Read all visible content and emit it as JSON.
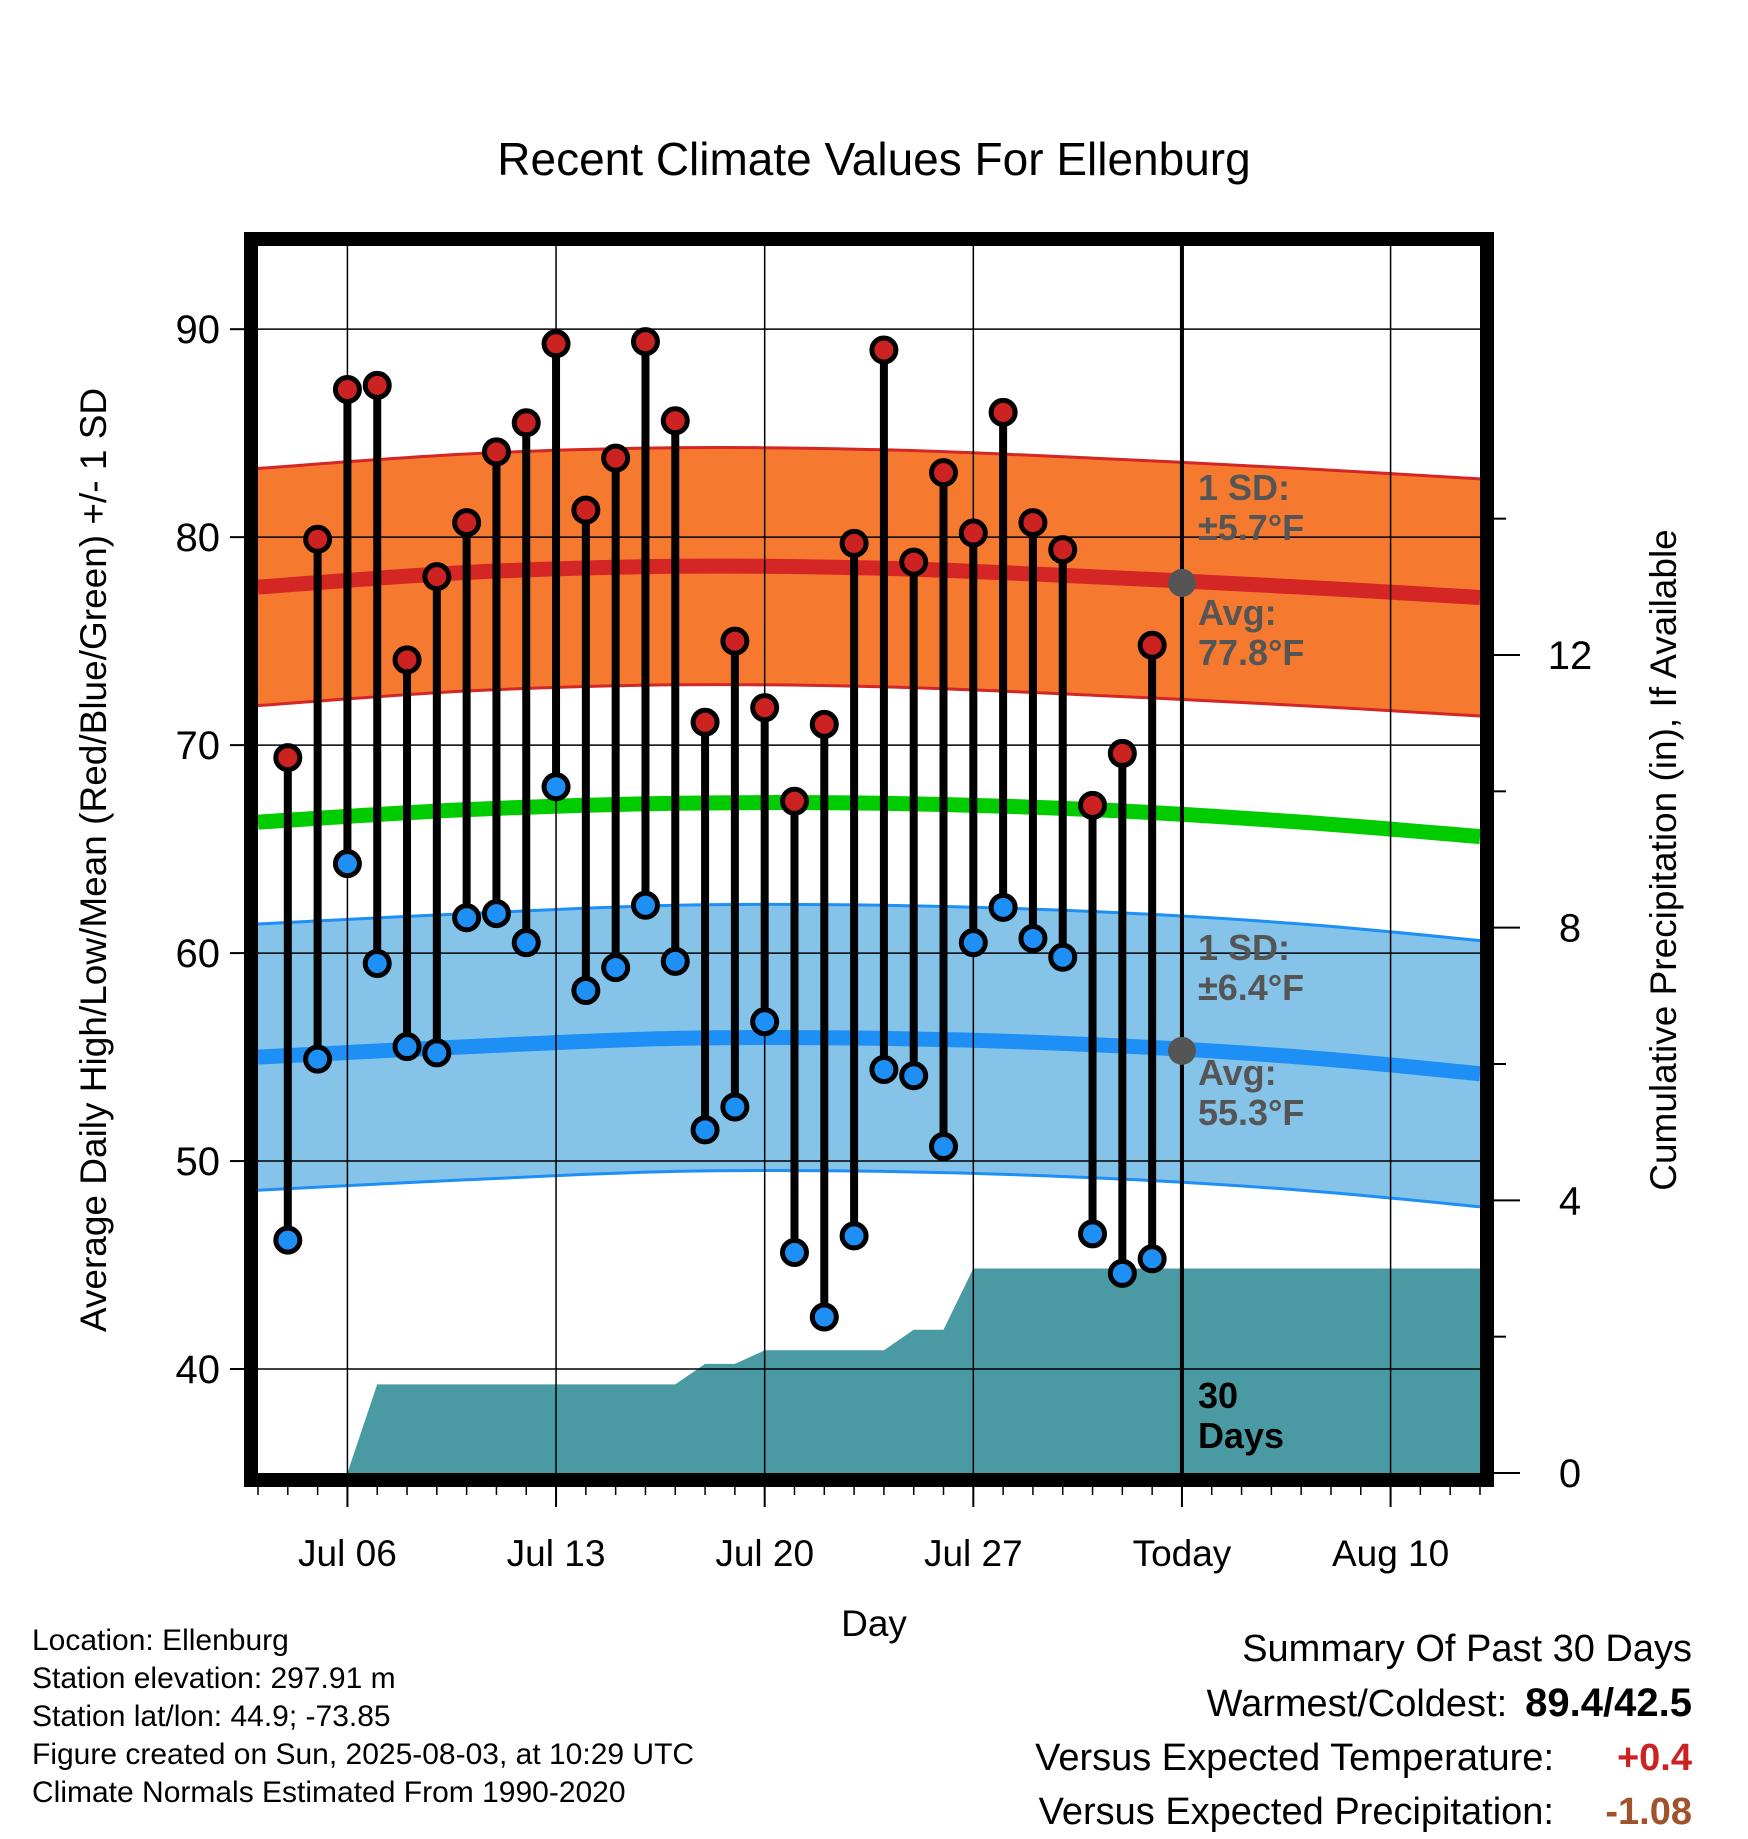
{
  "chart_data": {
    "type": "scatter",
    "title": "Recent Climate Values For Ellenburg",
    "xlabel": "Day",
    "ylabel_left": "Average Daily High/Low/Mean (Red/Blue/Green) +/- 1 SD",
    "ylabel_right": "Cumulative Precipitation (in), If Available",
    "x_ticks": [
      "Jul 06",
      "Jul 13",
      "Jul 20",
      "Jul 27",
      "Today",
      "Aug 10"
    ],
    "x_tick_dates": [
      "2025-07-06",
      "2025-07-13",
      "2025-07-20",
      "2025-07-27",
      "2025-08-03",
      "2025-08-10"
    ],
    "xlim": [
      "2025-07-03",
      "2025-08-13"
    ],
    "ylim_left": [
      35,
      94
    ],
    "yticks_left": [
      40,
      50,
      60,
      70,
      80,
      90
    ],
    "ylim_right": [
      0,
      18
    ],
    "yticks_right": [
      0,
      4,
      8,
      12
    ],
    "grid": true,
    "dates": [
      "2025-07-04",
      "2025-07-05",
      "2025-07-06",
      "2025-07-07",
      "2025-07-08",
      "2025-07-09",
      "2025-07-10",
      "2025-07-11",
      "2025-07-12",
      "2025-07-13",
      "2025-07-14",
      "2025-07-15",
      "2025-07-16",
      "2025-07-17",
      "2025-07-18",
      "2025-07-19",
      "2025-07-20",
      "2025-07-21",
      "2025-07-22",
      "2025-07-23",
      "2025-07-24",
      "2025-07-25",
      "2025-07-26",
      "2025-07-27",
      "2025-07-28",
      "2025-07-29",
      "2025-07-30",
      "2025-07-31",
      "2025-08-01",
      "2025-08-02"
    ],
    "daily_high": [
      69.4,
      79.9,
      87.1,
      87.3,
      74.1,
      78.1,
      80.7,
      84.1,
      85.5,
      89.3,
      81.3,
      83.8,
      89.4,
      85.6,
      71.1,
      75.0,
      71.8,
      67.3,
      71.0,
      79.7,
      89.0,
      78.8,
      83.1,
      80.2,
      86.0,
      80.7,
      79.4,
      67.1,
      69.6,
      74.8
    ],
    "daily_low": [
      46.2,
      54.9,
      64.3,
      59.5,
      55.5,
      55.2,
      61.7,
      61.9,
      60.5,
      68.0,
      58.2,
      59.3,
      62.3,
      59.6,
      51.5,
      52.6,
      56.7,
      45.6,
      42.5,
      46.4,
      54.4,
      54.1,
      50.7,
      60.5,
      62.2,
      60.7,
      59.8,
      46.5,
      44.6,
      45.3
    ],
    "normals_dates": [
      "2025-07-03",
      "2025-07-10",
      "2025-07-17",
      "2025-07-24",
      "2025-07-31",
      "2025-08-07",
      "2025-08-13"
    ],
    "normal_high": [
      77.6,
      78.3,
      78.6,
      78.5,
      78.1,
      77.6,
      77.1
    ],
    "normal_low": [
      55.0,
      55.5,
      55.9,
      55.9,
      55.6,
      55.0,
      54.2
    ],
    "normal_mean": [
      66.3,
      66.9,
      67.2,
      67.2,
      66.9,
      66.3,
      65.6
    ],
    "high_sd": 5.7,
    "low_sd": 6.4,
    "precip_steps": [
      {
        "date": "2025-07-06",
        "value": 0.0
      },
      {
        "date": "2025-07-07",
        "value": 1.3
      },
      {
        "date": "2025-07-17",
        "value": 1.3
      },
      {
        "date": "2025-07-18",
        "value": 1.6
      },
      {
        "date": "2025-07-19",
        "value": 1.6
      },
      {
        "date": "2025-07-20",
        "value": 1.8
      },
      {
        "date": "2025-07-24",
        "value": 1.8
      },
      {
        "date": "2025-07-25",
        "value": 2.1
      },
      {
        "date": "2025-07-26",
        "value": 2.1
      },
      {
        "date": "2025-07-27",
        "value": 3.0
      },
      {
        "date": "2025-08-13",
        "value": 3.0
      }
    ],
    "annotations": {
      "high_sd_label": [
        "1 SD:",
        "±5.7°F"
      ],
      "high_avg_label": [
        "Avg:",
        "77.8°F"
      ],
      "high_avg_value": 77.8,
      "low_sd_label": [
        "1 SD:",
        "±6.4°F"
      ],
      "low_avg_label": [
        "Avg:",
        "55.3°F"
      ],
      "low_avg_value": 55.3,
      "days_label": [
        "30",
        "Days"
      ]
    },
    "colors": {
      "high_band": "#f57a30",
      "high_line": "#d52626",
      "low_band": "#85c3e9",
      "low_line": "#1e8ff5",
      "mean_line": "#00cc00",
      "precip": "#4a9aa4",
      "high_marker": "#cc2222",
      "low_marker": "#1e8ff5",
      "annotation": "#555555"
    }
  },
  "info": {
    "location": "Location: Ellenburg",
    "elevation": "Station elevation: 297.91 m",
    "latlon": "Station lat/lon: 44.9; -73.85",
    "created": "Figure created on Sun, 2025-08-03, at 10:29 UTC",
    "normals": "Climate Normals Estimated From 1990-2020"
  },
  "summary": {
    "heading": "Summary Of Past 30 Days",
    "warm_cold_label": "Warmest/Coldest:",
    "warm_cold_value": "89.4/42.5",
    "temp_label": "Versus Expected Temperature:",
    "temp_value": "+0.4",
    "temp_color": "#cc2222",
    "precip_label": "Versus Expected Precipitation:",
    "precip_value": "-1.08",
    "precip_color": "#a0522d"
  }
}
